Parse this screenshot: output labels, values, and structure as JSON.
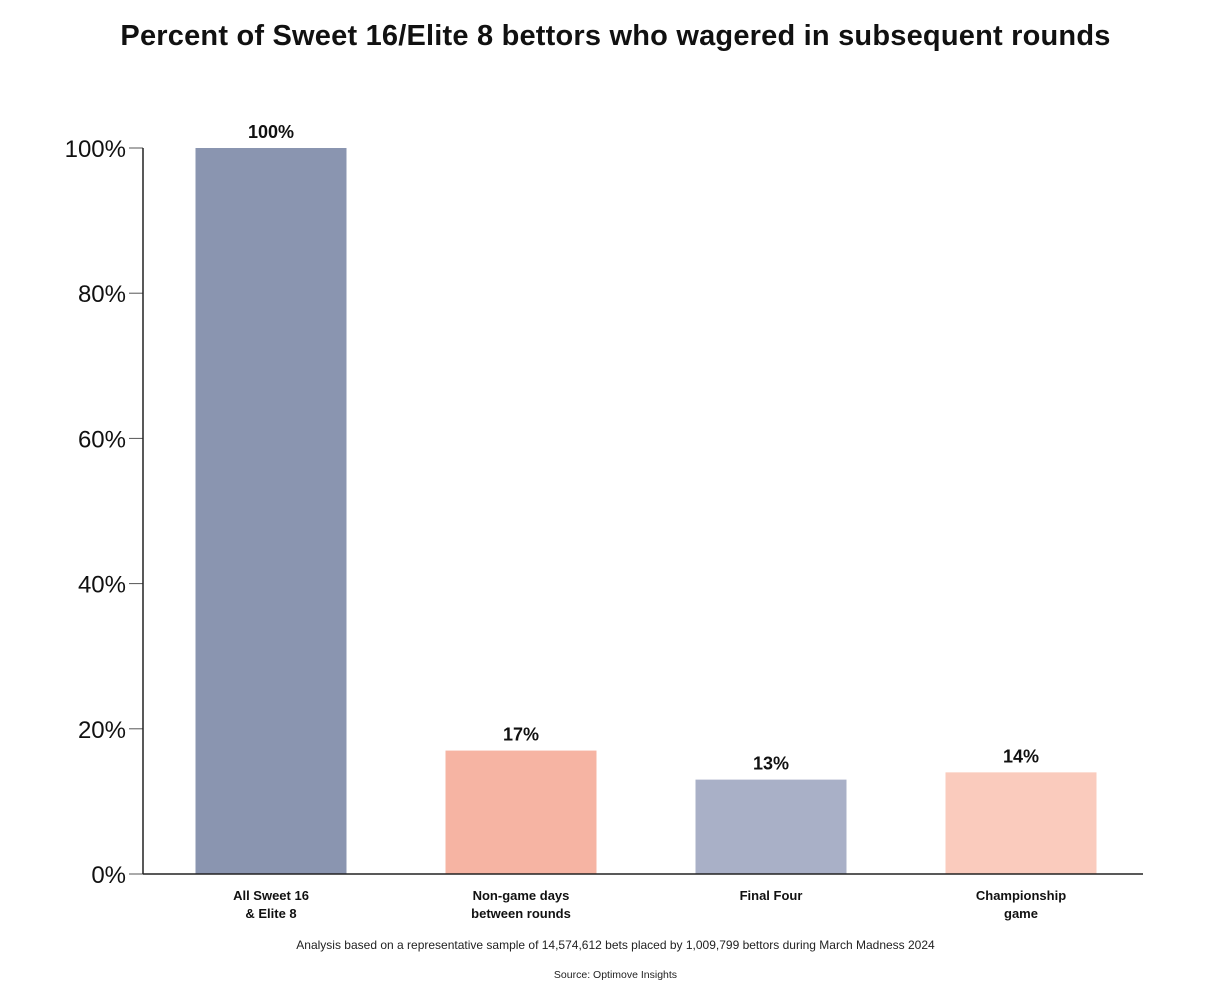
{
  "chart_data": {
    "type": "bar",
    "title": "Percent of Sweet 16/Elite 8 bettors who wagered in subsequent rounds",
    "categories": [
      [
        "All Sweet 16",
        "& Elite 8"
      ],
      [
        "Non-game days",
        "between rounds"
      ],
      [
        "Final Four"
      ],
      [
        "Championship",
        "game"
      ]
    ],
    "values": [
      100,
      17,
      13,
      14
    ],
    "value_labels": [
      "100%",
      "17%",
      "13%",
      "14%"
    ],
    "colors": [
      "#8a95b0",
      "#f6b4a3",
      "#a9b0c7",
      "#facbbd"
    ],
    "ylim": [
      0,
      100
    ],
    "yticks": [
      0,
      20,
      40,
      60,
      80,
      100
    ],
    "ytick_labels": [
      "0%",
      "20%",
      "40%",
      "60%",
      "80%",
      "100%"
    ],
    "xlabel": "",
    "ylabel": "",
    "grid": false
  },
  "footnote": "Analysis based on a representative sample of 14,574,612 bets placed by 1,009,799 bettors during March Madness 2024",
  "source": "Source: Optimove Insights"
}
